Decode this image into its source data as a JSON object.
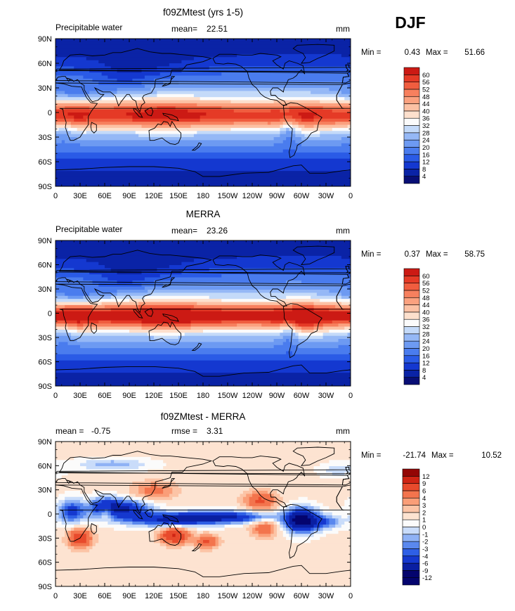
{
  "season": "DJF",
  "colors": {
    "pw_levels": [
      "#080e75",
      "#0a23a6",
      "#1438d0",
      "#2a5be6",
      "#4a7cee",
      "#6d9af2",
      "#95b8f6",
      "#c4daf9",
      "#fbfbfb",
      "#fde0cd",
      "#fcc1a4",
      "#fba17f",
      "#f7805e",
      "#f05d3f",
      "#e53a26",
      "#cc1a14",
      "#980806"
    ],
    "diff_levels": [
      "#04046e",
      "#0a1fa2",
      "#1538cf",
      "#2e5fe6",
      "#5a88ee",
      "#8fb2f5",
      "#c9dcfa",
      "#fbfbfb",
      "#fde3d1",
      "#fcc4a6",
      "#fa9e78",
      "#f3744d",
      "#e84a2c",
      "#cf2414",
      "#930605"
    ],
    "land_outline": "#000000"
  },
  "chart_data": [
    {
      "type": "heatmap",
      "title": "f09ZMtest (yrs 1-5)",
      "left_label": "Precipitable water",
      "center_label": "mean=",
      "center_value": "22.51",
      "units": "mm",
      "min_label": "Min =",
      "min_value": "0.43",
      "max_label": "Max =",
      "max_value": "51.66",
      "x_ticks": [
        "0",
        "30E",
        "60E",
        "90E",
        "120E",
        "150E",
        "180",
        "150W",
        "120W",
        "90W",
        "60W",
        "30W",
        "0"
      ],
      "y_ticks": [
        "90N",
        "60N",
        "30N",
        "0",
        "30S",
        "60S",
        "90S"
      ],
      "colorbar_levels": [
        "4",
        "8",
        "12",
        "16",
        "20",
        "24",
        "28",
        "32",
        "36",
        "40",
        "44",
        "48",
        "52",
        "56",
        "60"
      ],
      "field": {
        "base": 30,
        "tropics": 26,
        "itcz_lat": -3,
        "width": 16,
        "maritime": 6,
        "americas": 4,
        "africa": 4,
        "pole_drop": 1.0
      }
    },
    {
      "type": "heatmap",
      "title": "MERRA",
      "left_label": "Precipitable water",
      "center_label": "mean=",
      "center_value": "23.26",
      "units": "mm",
      "min_label": "Min =",
      "min_value": "0.37",
      "max_label": "Max =",
      "max_value": "58.75",
      "x_ticks": [
        "0",
        "30E",
        "60E",
        "90E",
        "120E",
        "150E",
        "180",
        "150W",
        "120W",
        "90W",
        "60W",
        "30W",
        "0"
      ],
      "y_ticks": [
        "90N",
        "60N",
        "30N",
        "0",
        "30S",
        "60S",
        "90S"
      ],
      "colorbar_levels": [
        "4",
        "8",
        "12",
        "16",
        "20",
        "24",
        "28",
        "32",
        "36",
        "40",
        "44",
        "48",
        "52",
        "56",
        "60"
      ],
      "field": {
        "base": 30,
        "tropics": 30,
        "itcz_lat": -2,
        "width": 15,
        "maritime": 9,
        "americas": 12,
        "africa": 6,
        "pole_drop": 1.0
      }
    },
    {
      "type": "heatmap",
      "title": "f09ZMtest - MERRA",
      "left_label": "mean =",
      "left_value": "-0.75",
      "center_label": "rmse =",
      "center_value": "3.31",
      "units": "mm",
      "min_label": "Min =",
      "min_value": "-21.74",
      "max_label": "Max =",
      "max_value": "10.52",
      "x_ticks": [
        "0",
        "30E",
        "60E",
        "90E",
        "120E",
        "150E",
        "180",
        "150W",
        "120W",
        "90W",
        "60W",
        "30W",
        "0"
      ],
      "y_ticks": [
        "90N",
        "60N",
        "30N",
        "0",
        "30S",
        "60S",
        "90S"
      ],
      "colorbar_levels": [
        "-12",
        "-9",
        "-6",
        "-4",
        "-3",
        "-2",
        "-1",
        "0",
        "1",
        "2",
        "3",
        "4",
        "6",
        "9",
        "12"
      ]
    }
  ]
}
